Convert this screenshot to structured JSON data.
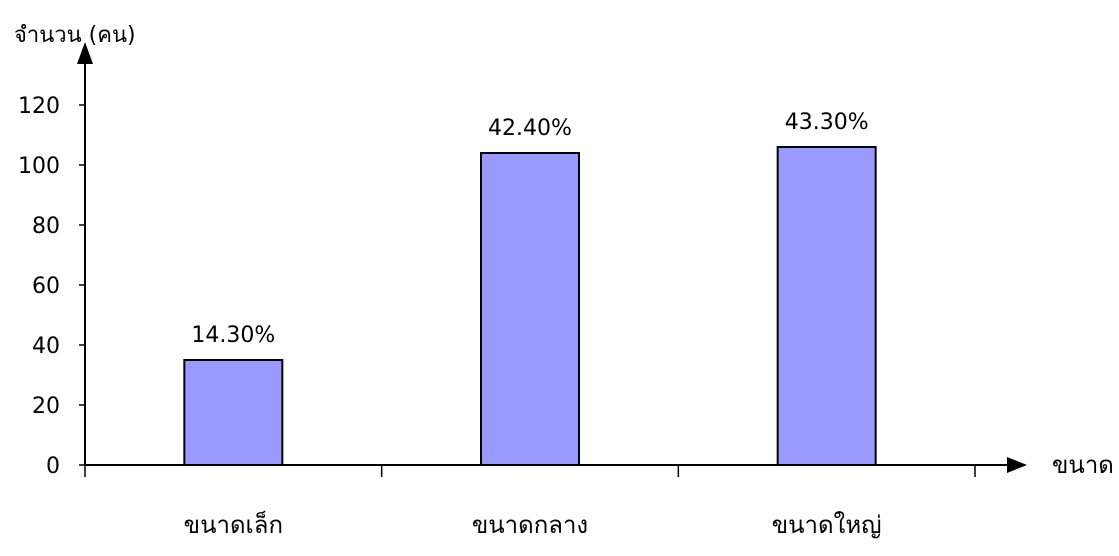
{
  "chart_data": {
    "type": "bar",
    "ylabel": "จำนวน (คน)",
    "xlabel": "ขนาด",
    "categories": [
      "ขนาดเล็ก",
      "ขนาดกลาง",
      "ขนาดใหญ่"
    ],
    "values": [
      35,
      104,
      106
    ],
    "data_labels": [
      "14.30%",
      "42.40%",
      "43.30%"
    ],
    "yticks": [
      "0",
      "20",
      "40",
      "60",
      "80",
      "100",
      "120"
    ],
    "ylim": [
      0,
      120
    ],
    "grid": false,
    "legend": "none",
    "bar_color": "#9999ff",
    "bar_stroke": "#000000"
  }
}
